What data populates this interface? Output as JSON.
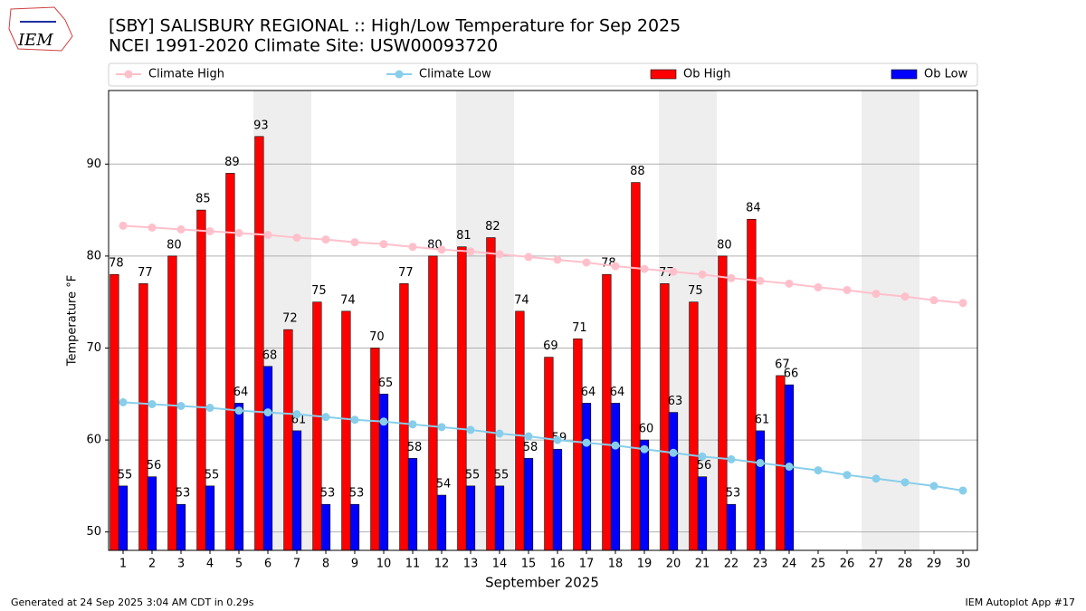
{
  "chart_data": {
    "type": "bar",
    "logo_text": "IEM",
    "title": "[SBY] SALISBURY REGIONAL :: High/Low Temperature for Sep 2025",
    "subtitle": "NCEI 1991-2020 Climate Site: USW00093720",
    "x_label": "September 2025",
    "y_label": "Temperature °F",
    "footer_left": "Generated at 24 Sep 2025 3:04 AM CDT in 0.29s",
    "footer_right": "IEM Autoplot App #17",
    "legend": "top",
    "grid": true,
    "shaded": [
      "6",
      "7",
      "13",
      "14",
      "20",
      "21",
      "27",
      "28"
    ],
    "categories": [
      "1",
      "2",
      "3",
      "4",
      "5",
      "6",
      "7",
      "8",
      "9",
      "10",
      "11",
      "12",
      "13",
      "14",
      "15",
      "16",
      "17",
      "18",
      "19",
      "20",
      "21",
      "22",
      "23",
      "24",
      "25",
      "26",
      "27",
      "28",
      "29",
      "30"
    ],
    "ylim": [
      48,
      98
    ],
    "yticks": [
      50,
      60,
      70,
      80,
      90
    ],
    "series": [
      {
        "name": "Climate High",
        "type": "line",
        "color": "#ffc0cb",
        "values": [
          83.3,
          83.1,
          82.9,
          82.7,
          82.5,
          82.3,
          82.0,
          81.8,
          81.5,
          81.3,
          81.0,
          80.7,
          80.5,
          80.2,
          79.9,
          79.6,
          79.3,
          78.9,
          78.6,
          78.3,
          78.0,
          77.6,
          77.3,
          77.0,
          76.6,
          76.3,
          75.9,
          75.6,
          75.2,
          74.9
        ]
      },
      {
        "name": "Climate Low",
        "type": "line",
        "color": "#87ceeb",
        "values": [
          64.1,
          63.9,
          63.7,
          63.5,
          63.2,
          63.0,
          62.8,
          62.5,
          62.2,
          62.0,
          61.7,
          61.4,
          61.1,
          60.7,
          60.4,
          60.0,
          59.7,
          59.4,
          59.0,
          58.6,
          58.2,
          57.9,
          57.5,
          57.1,
          56.7,
          56.2,
          55.8,
          55.4,
          55.0,
          54.5
        ]
      },
      {
        "name": "Ob High",
        "type": "bar",
        "color": "#ff0000",
        "values": [
          78,
          77,
          80,
          85,
          89,
          93,
          72,
          75,
          74,
          70,
          77,
          80,
          81,
          82,
          74,
          69,
          71,
          78,
          88,
          77,
          75,
          80,
          84,
          67,
          null,
          null,
          null,
          null,
          null,
          null
        ]
      },
      {
        "name": "Ob Low",
        "type": "bar",
        "color": "#0000ff",
        "values": [
          55,
          56,
          53,
          55,
          64,
          68,
          61,
          53,
          53,
          65,
          58,
          54,
          55,
          55,
          58,
          59,
          64,
          64,
          60,
          63,
          56,
          53,
          61,
          66,
          null,
          null,
          null,
          null,
          null,
          null
        ]
      }
    ]
  }
}
